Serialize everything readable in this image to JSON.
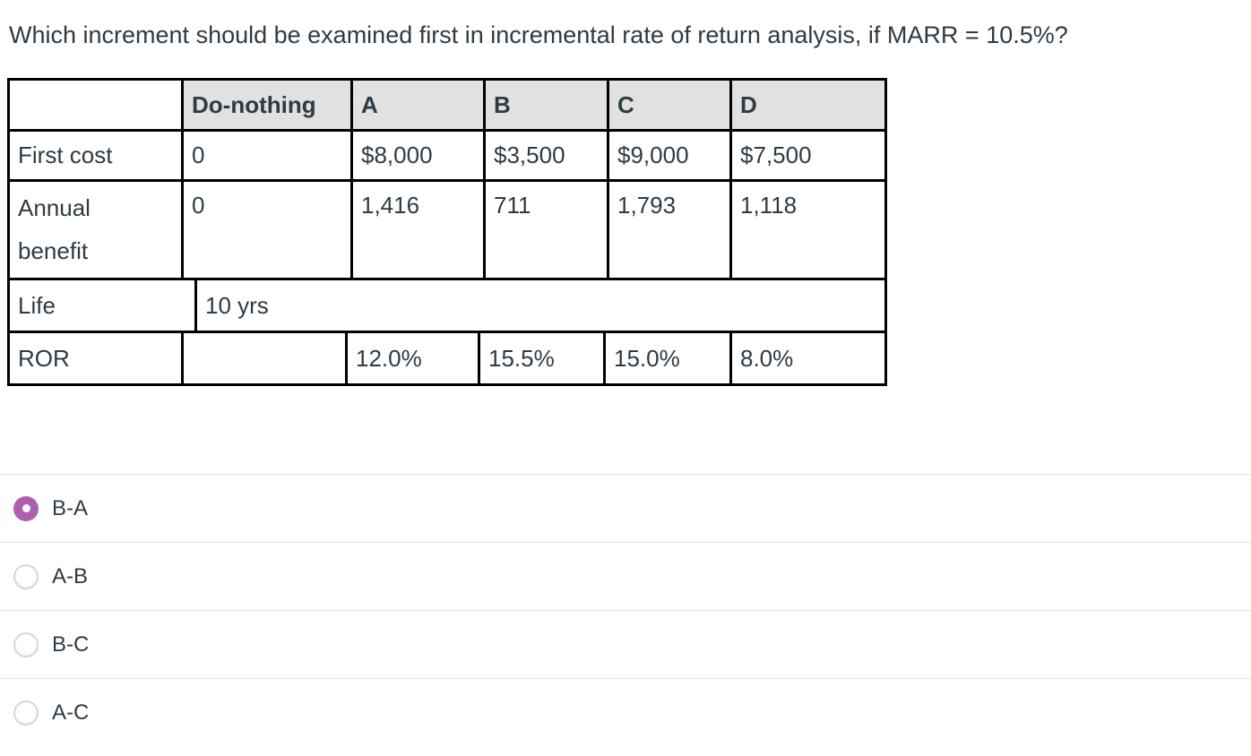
{
  "question": {
    "title": "Which increment should be examined first in incremental rate of return analysis, if MARR = 10.5%?"
  },
  "table": {
    "header": [
      "",
      "Do-nothing",
      "A",
      "B",
      "C",
      "D"
    ],
    "rows": [
      {
        "label": "First cost",
        "values": [
          "0",
          "$8,000",
          "$3,500",
          "$9,000",
          "$7,500"
        ]
      },
      {
        "label": "Annual\nbenefit",
        "values": [
          "0",
          "1,416",
          "711",
          "1,793",
          "1,118"
        ]
      },
      {
        "label": "Life",
        "span_value": "10 yrs"
      },
      {
        "label": "ROR",
        "values": [
          "",
          "12.0%",
          "15.5%",
          "15.0%",
          "8.0%"
        ]
      }
    ]
  },
  "options": [
    {
      "label": "B-A",
      "selected": true
    },
    {
      "label": "A-B",
      "selected": false
    },
    {
      "label": "B-C",
      "selected": false
    },
    {
      "label": "A-C",
      "selected": false
    }
  ],
  "colors": {
    "text": "#2d3b45",
    "table_border": "#000000",
    "table_header_bg": "#e1e1e1",
    "radio_selected": "#b05fae",
    "option_divider": "#e4e4e4"
  }
}
